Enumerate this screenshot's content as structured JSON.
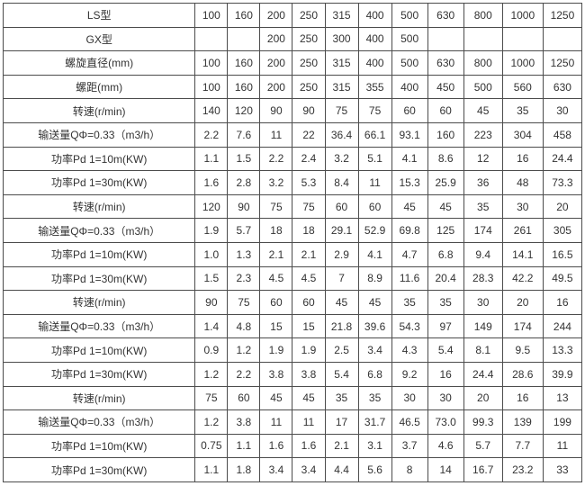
{
  "colors": {
    "border": "#4c4c4c",
    "text": "#333333",
    "background": "#ffffff"
  },
  "chart_data": {
    "type": "table",
    "title": "",
    "rows": [
      {
        "label": "LS型",
        "values": [
          "100",
          "160",
          "200",
          "250",
          "315",
          "400",
          "500",
          "630",
          "800",
          "1000",
          "1250"
        ]
      },
      {
        "label": "GX型",
        "values": [
          "",
          "",
          "200",
          "250",
          "300",
          "400",
          "500",
          "",
          "",
          "",
          ""
        ]
      },
      {
        "label": "螺旋直径(mm)",
        "values": [
          "100",
          "160",
          "200",
          "250",
          "315",
          "400",
          "500",
          "630",
          "800",
          "1000",
          "1250"
        ]
      },
      {
        "label": "螺距(mm)",
        "values": [
          "100",
          "160",
          "200",
          "250",
          "315",
          "355",
          "400",
          "450",
          "500",
          "560",
          "630"
        ]
      },
      {
        "label": "转速(r/min)",
        "values": [
          "140",
          "120",
          "90",
          "90",
          "75",
          "75",
          "60",
          "60",
          "45",
          "35",
          "30"
        ]
      },
      {
        "label": "输送量QΦ=0.33（m3/h）",
        "values": [
          "2.2",
          "7.6",
          "11",
          "22",
          "36.4",
          "66.1",
          "93.1",
          "160",
          "223",
          "304",
          "458"
        ]
      },
      {
        "label": "功率Pd 1=10m(KW)",
        "values": [
          "1.1",
          "1.5",
          "2.2",
          "2.4",
          "3.2",
          "5.1",
          "4.1",
          "8.6",
          "12",
          "16",
          "24.4"
        ]
      },
      {
        "label": "功率Pd 1=30m(KW)",
        "values": [
          "1.6",
          "2.8",
          "3.2",
          "5.3",
          "8.4",
          "11",
          "15.3",
          "25.9",
          "36",
          "48",
          "73.3"
        ]
      },
      {
        "label": "转速(r/min)",
        "values": [
          "120",
          "90",
          "75",
          "75",
          "60",
          "60",
          "45",
          "45",
          "35",
          "30",
          "20"
        ]
      },
      {
        "label": "输送量QΦ=0.33（m3/h）",
        "values": [
          "1.9",
          "5.7",
          "18",
          "18",
          "29.1",
          "52.9",
          "69.8",
          "125",
          "174",
          "261",
          "305"
        ]
      },
      {
        "label": "功率Pd 1=10m(KW)",
        "values": [
          "1.0",
          "1.3",
          "2.1",
          "2.1",
          "2.9",
          "4.1",
          "4.7",
          "6.8",
          "9.4",
          "14.1",
          "16.5"
        ]
      },
      {
        "label": "功率Pd 1=30m(KW)",
        "values": [
          "1.5",
          "2.3",
          "4.5",
          "4.5",
          "7",
          "8.9",
          "11.6",
          "20.4",
          "28.3",
          "42.2",
          "49.5"
        ]
      },
      {
        "label": "转速(r/min)",
        "values": [
          "90",
          "75",
          "60",
          "60",
          "45",
          "45",
          "35",
          "35",
          "30",
          "20",
          "16"
        ]
      },
      {
        "label": "输送量QΦ=0.33（m3/h）",
        "values": [
          "1.4",
          "4.8",
          "15",
          "15",
          "21.8",
          "39.6",
          "54.3",
          "97",
          "149",
          "174",
          "244"
        ]
      },
      {
        "label": "功率Pd 1=10m(KW)",
        "values": [
          "0.9",
          "1.2",
          "1.9",
          "1.9",
          "2.5",
          "3.4",
          "4.3",
          "5.4",
          "8.1",
          "9.5",
          "13.3"
        ]
      },
      {
        "label": "功率Pd 1=30m(KW)",
        "values": [
          "1.2",
          "2.2",
          "3.8",
          "3.8",
          "5.4",
          "6.8",
          "9.2",
          "16",
          "24.4",
          "28.6",
          "39.9"
        ]
      },
      {
        "label": "转速(r/min)",
        "values": [
          "75",
          "60",
          "45",
          "45",
          "35",
          "35",
          "30",
          "30",
          "20",
          "16",
          "13"
        ]
      },
      {
        "label": "输送量QΦ=0.33（m3/h）",
        "values": [
          "1.2",
          "3.8",
          "11",
          "11",
          "17",
          "31.7",
          "46.5",
          "73.0",
          "99.3",
          "139",
          "199"
        ]
      },
      {
        "label": "功率Pd 1=10m(KW)",
        "values": [
          "0.75",
          "1.1",
          "1.6",
          "1.6",
          "2.1",
          "3.1",
          "3.7",
          "4.6",
          "5.7",
          "7.7",
          "11"
        ]
      },
      {
        "label": "功率Pd 1=30m(KW)",
        "values": [
          "1.1",
          "1.8",
          "3.4",
          "3.4",
          "4.4",
          "5.6",
          "8",
          "14",
          "16.7",
          "23.2",
          "33"
        ]
      }
    ]
  }
}
